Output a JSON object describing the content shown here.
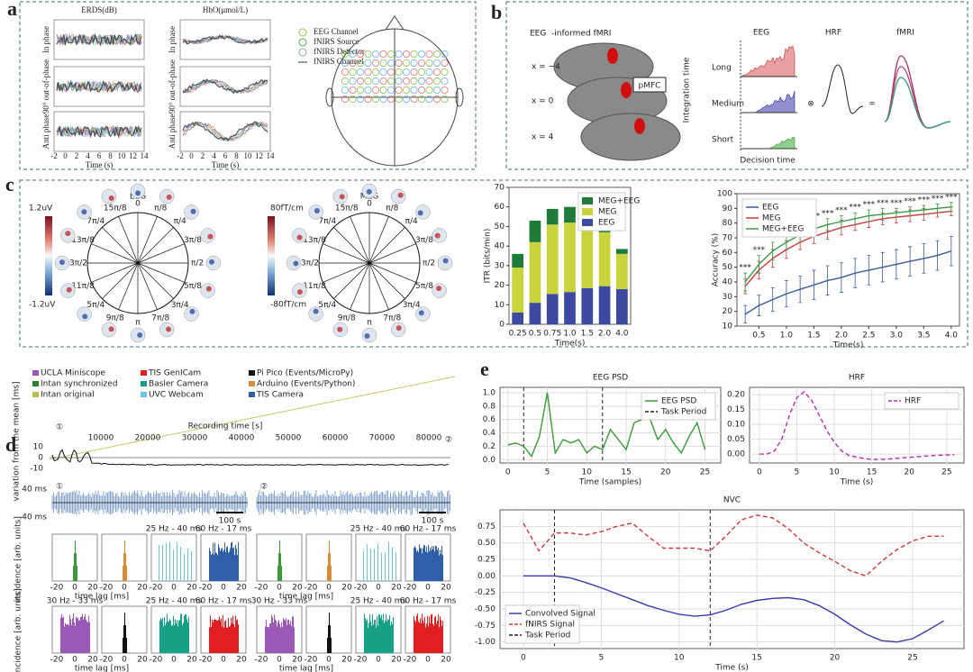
{
  "panels": {
    "a": {
      "label": "a",
      "erds_title": "ERDS(dB)",
      "hbo_title": "HbO(μmol/L)",
      "row_labels": [
        "In phase",
        "90° out-of-phase",
        "Anti phase"
      ],
      "xlabel": "Time (s)",
      "xticks": [
        "-2",
        "0",
        "2",
        "4",
        "6",
        "8",
        "10",
        "12",
        "14"
      ],
      "legend": [
        "EEG Channel",
        "fNIRS Source",
        "fNIRS Detector",
        "fNIRS Channel"
      ]
    },
    "b": {
      "label": "b",
      "title_red": "EEG",
      "title_rest": "-informed fMRI",
      "slices": [
        "x = −4",
        "x = 0",
        "x = 4"
      ],
      "region": "pMFC",
      "integration": "Integration time",
      "levels": [
        "Long",
        "Medium",
        "Short"
      ],
      "decision": "Decision time",
      "headers": [
        "EEG",
        "HRF",
        "fMRI"
      ],
      "conv": "⊗",
      "equals": "="
    },
    "c": {
      "label": "c",
      "eeg_title": "EEG",
      "meg_title": "MEG",
      "eeg_scale": [
        "1.2uV",
        "-1.2uV"
      ],
      "meg_scale": [
        "80fT/cm",
        "-80fT/cm"
      ],
      "phases": [
        "0",
        "π/8",
        "π/4",
        "3π/8",
        "π/2",
        "5π/8",
        "3π/4",
        "7π/8",
        "π",
        "9π/8",
        "5π/4",
        "11π/8",
        "3π/2",
        "13π/8",
        "7π/4",
        "15π/8"
      ]
    },
    "d": {
      "label": "d",
      "legend": [
        "UCLA Miniscope",
        "TIS GenICam",
        "Pi Pico (Events/MicroPy)",
        "Intan synchronized",
        "Basler Camera",
        "Arduino (Events/Python)",
        "Intan original",
        "UVC Webcam",
        "TIS Camera"
      ],
      "legend_colors": [
        "#9b59b6",
        "#e02020",
        "#111111",
        "#2e7d32",
        "#16a085",
        "#d98b3a",
        "#b5c24a",
        "#6cc6d9",
        "#2f5fa8"
      ],
      "time_label": "Recording time [s]",
      "time_ticks": [
        "10000",
        "20000",
        "30000",
        "40000",
        "50000",
        "60000",
        "70000",
        "80000"
      ],
      "variation_label": "variation from the mean [ms]",
      "variation_ticks": [
        "10",
        "0",
        "-10"
      ],
      "marks": [
        "①",
        "②"
      ],
      "raster_ticks": [
        "40 ms",
        "-40 ms"
      ],
      "scale_bar": "100 s",
      "incidence_label": "incidence [arb. units]",
      "lag_label": "time lag [ms]",
      "lag_ticks": [
        "-20",
        "0",
        "20"
      ],
      "rates": [
        "25 Hz - 40 ms",
        "60 Hz - 17 ms",
        "30 Hz - 33 ms"
      ]
    },
    "e": {
      "label": "e"
    }
  },
  "chart_data": [
    {
      "type": "bar",
      "stacked": true,
      "categories": [
        "0.25",
        "0.5",
        "0.75",
        "1.0",
        "1.5",
        "2.0",
        "4.0"
      ],
      "series": [
        {
          "name": "EEG",
          "color": "#3b4aa0",
          "values": [
            6,
            11,
            15.5,
            16.5,
            18.5,
            19.5,
            18
          ]
        },
        {
          "name": "MEG",
          "color": "#c9d33b",
          "values": [
            23,
            31,
            35.5,
            35.5,
            31.5,
            27.5,
            18
          ]
        },
        {
          "name": "MEG+EEG",
          "color": "#1e7b3a",
          "values": [
            7,
            11,
            8,
            8,
            8,
            6.5,
            2.5
          ]
        }
      ],
      "ylim": [
        0,
        70
      ],
      "yticks": [
        0,
        10,
        20,
        30,
        40,
        50,
        60,
        70
      ],
      "ylabel": "ITR (bits/min)",
      "xlabel": "Time(s)",
      "grid": false,
      "legend": "upper right"
    },
    {
      "type": "line",
      "x": [
        0.25,
        0.5,
        0.75,
        1.0,
        1.25,
        1.5,
        1.75,
        2.0,
        2.25,
        2.5,
        2.75,
        3.0,
        3.25,
        3.5,
        3.75,
        4.0
      ],
      "series": [
        {
          "name": "EEG",
          "color": "#3a5a9a",
          "values": [
            18,
            24,
            28,
            32,
            35,
            38,
            41,
            43,
            46,
            48,
            50,
            52,
            54,
            56,
            58,
            61
          ],
          "errors": [
            6,
            7,
            8,
            9,
            9,
            10,
            10,
            10,
            10,
            10,
            10,
            10,
            10,
            10,
            10,
            10
          ]
        },
        {
          "name": "MEG",
          "color": "#d0393a",
          "values": [
            37,
            48,
            56,
            62,
            67,
            71,
            74,
            77,
            79,
            81,
            83,
            84,
            85,
            86,
            87,
            88
          ],
          "errors": [
            5,
            6,
            6,
            6,
            5,
            5,
            5,
            5,
            4,
            4,
            4,
            4,
            4,
            4,
            3,
            3
          ]
        },
        {
          "name": "MEG+EEG",
          "color": "#3a9a4a",
          "values": [
            40,
            52,
            61,
            67,
            72,
            76,
            79,
            81,
            83,
            85,
            86,
            87,
            88,
            89,
            90,
            91
          ],
          "errors": [
            6,
            6,
            6,
            5,
            5,
            5,
            4,
            4,
            4,
            4,
            4,
            3,
            3,
            3,
            3,
            3
          ]
        }
      ],
      "annotations": [
        "***",
        "***",
        "***",
        "***",
        "***",
        "***",
        "***",
        "***",
        "***",
        "***",
        "***",
        "***",
        "***",
        "***",
        "***",
        "***"
      ],
      "xlim": [
        0.1,
        4.15
      ],
      "xticks": [
        0.5,
        {
          "value": 1,
          "label": "1.0"
        },
        1.5,
        {
          "value": 2,
          "label": "2.0"
        },
        2.5,
        {
          "value": 3,
          "label": "3.0"
        },
        3.5,
        {
          "value": 4,
          "label": "4.0"
        }
      ],
      "ylim": [
        10,
        100
      ],
      "yticks": [
        10,
        20,
        30,
        40,
        50,
        60,
        70,
        80,
        90,
        100
      ],
      "ylabel": "Accuracy (%)",
      "xlabel": "Time(s)",
      "grid": false,
      "legend": "upper left"
    },
    {
      "type": "line",
      "title": "EEG PSD",
      "x": [
        0,
        1,
        2,
        3,
        4,
        5,
        6,
        7,
        8,
        9,
        10,
        11,
        12,
        13,
        14,
        15,
        16,
        17,
        18,
        19,
        20,
        21,
        22,
        23,
        24,
        25
      ],
      "series": [
        {
          "name": "EEG PSD",
          "color": "#3a9a3a",
          "values": [
            0.22,
            0.25,
            0.2,
            0.05,
            0.35,
            1.0,
            0.1,
            0.3,
            0.25,
            0.3,
            0.1,
            0.2,
            0.15,
            0.45,
            0.3,
            0.15,
            0.55,
            0.6,
            0.62,
            0.3,
            0.45,
            0.25,
            0.1,
            0.35,
            0.55,
            0.15
          ]
        }
      ],
      "vlines": [
        2,
        12
      ],
      "vline_label": "Task Period",
      "xlim": [
        -1,
        27
      ],
      "xticks": [
        0,
        5,
        10,
        15,
        20,
        25
      ],
      "ylim": [
        -0.05,
        1.08
      ],
      "yticks": [
        {
          "value": 0,
          "label": "0.0"
        },
        0.2,
        0.4,
        0.6,
        0.8,
        {
          "value": 1,
          "label": "1.0"
        }
      ],
      "xlabel": "Time (samples)",
      "grid": true,
      "legend": "upper right"
    },
    {
      "type": "line",
      "title": "HRF",
      "x": [
        0,
        1,
        2,
        3,
        4,
        5,
        6,
        7,
        8,
        9,
        10,
        11,
        12,
        13,
        14,
        15,
        16,
        17,
        18,
        19,
        20,
        21,
        22,
        23,
        24,
        25,
        26
      ],
      "series": [
        {
          "name": "HRF",
          "color": "#b030b0",
          "dashed": true,
          "values": [
            0,
            0,
            0.01,
            0.05,
            0.13,
            0.19,
            0.21,
            0.18,
            0.13,
            0.08,
            0.04,
            0.01,
            -0.005,
            -0.01,
            -0.015,
            -0.018,
            -0.018,
            -0.017,
            -0.015,
            -0.013,
            -0.011,
            -0.009,
            -0.007,
            -0.005,
            -0.004,
            -0.003,
            -0.002
          ]
        }
      ],
      "xlim": [
        -1.3,
        27.3
      ],
      "xticks": [
        0,
        5,
        10,
        15,
        20,
        25
      ],
      "ylim": [
        -0.03,
        0.225
      ],
      "yticks": [
        {
          "value": 0,
          "label": "0.00"
        },
        0.05,
        {
          "value": 0.1,
          "label": "0.10"
        },
        0.15,
        {
          "value": 0.2,
          "label": "0.20"
        }
      ],
      "xlabel": "Time (s)",
      "grid": true,
      "legend": "upper right"
    },
    {
      "type": "line",
      "title": "NVC",
      "x": [
        0,
        1,
        2,
        3,
        4,
        5,
        6,
        7,
        8,
        9,
        10,
        11,
        12,
        13,
        14,
        15,
        16,
        17,
        18,
        19,
        20,
        21,
        22,
        23,
        24,
        25,
        26,
        27
      ],
      "series": [
        {
          "name": "Convolved Signal",
          "color": "#3a3ab0",
          "values": [
            0,
            0,
            0,
            -0.03,
            -0.1,
            -0.18,
            -0.27,
            -0.36,
            -0.45,
            -0.52,
            -0.58,
            -0.61,
            -0.59,
            -0.52,
            -0.43,
            -0.37,
            -0.34,
            -0.33,
            -0.36,
            -0.45,
            -0.58,
            -0.74,
            -0.88,
            -0.98,
            -1.0,
            -0.95,
            -0.82,
            -0.68
          ]
        },
        {
          "name": "fNIRS Signal",
          "color": "#d03a3a",
          "dashed": true,
          "values": [
            0.8,
            0.38,
            0.65,
            0.65,
            0.62,
            0.67,
            0.75,
            0.8,
            0.6,
            0.42,
            0.42,
            0.42,
            0.38,
            0.6,
            0.85,
            0.92,
            0.88,
            0.72,
            0.5,
            0.35,
            0.22,
            0.08,
            0,
            0.22,
            0.4,
            0.53,
            0.6,
            0.6
          ]
        }
      ],
      "vlines": [
        2,
        12
      ],
      "vline_label": "Task Period",
      "xlim": [
        -1.5,
        28.3
      ],
      "xticks": [
        0,
        5,
        10,
        15,
        20,
        25
      ],
      "ylim": [
        -1.1,
        1.0
      ],
      "yticks": [
        {
          "value": -1,
          "label": "-1.00"
        },
        -0.75,
        {
          "value": -0.5,
          "label": "-0.50"
        },
        -0.25,
        {
          "value": 0,
          "label": "0.00"
        },
        0.25,
        {
          "value": 0.5,
          "label": "0.50"
        },
        0.75
      ],
      "xlabel": "Time (s)",
      "grid": true,
      "legend": "lower left"
    }
  ]
}
